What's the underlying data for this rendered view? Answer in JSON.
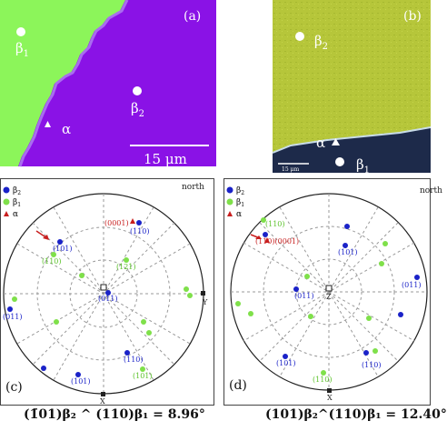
{
  "panel_a": {
    "label": "(a)",
    "phase_labels": {
      "beta1": "β",
      "beta1_sub": "1",
      "beta2": "β",
      "beta2_sub": "2",
      "alpha": "α"
    },
    "scale_bar": "15 μm",
    "colors": {
      "green": "#8cf55a",
      "purple": "#8a12e6"
    }
  },
  "panel_b": {
    "label": "(b)",
    "phase_labels": {
      "beta2": "β",
      "beta2_sub": "2",
      "alpha": "α",
      "beta1": "β",
      "beta1_sub": "1"
    },
    "scale_bar": "15 μm",
    "colors": {
      "yellow_green": "#b6c63a",
      "dark_blue": "#1d2a4a"
    }
  },
  "panel_c": {
    "label": "(c)",
    "north": "north",
    "legend": [
      {
        "symbol": "blue-dot",
        "text": "β",
        "sub": "2",
        "color": "#1a22c8"
      },
      {
        "symbol": "green-dot",
        "text": "β",
        "sub": "1",
        "color": "#7fe04a"
      },
      {
        "symbol": "red-triangle",
        "text": "α",
        "sub": "",
        "color": "#c81e1e"
      }
    ],
    "axes": {
      "x": "X",
      "y": "Y"
    },
    "labels": {
      "a0001": "(0001)",
      "b110": "(110)",
      "b101": "(101)",
      "g110": "(110)",
      "g121": "(121)",
      "center": "(011)",
      "left": "(011)",
      "g101": "(101)",
      "b110b": "(110)",
      "b101b": "(101)"
    }
  },
  "panel_d": {
    "label": "(d)",
    "north": "north",
    "legend": [
      {
        "symbol": "blue-dot",
        "text": "β",
        "sub": "2",
        "color": "#1a22c8"
      },
      {
        "symbol": "green-dot",
        "text": "β",
        "sub": "1",
        "color": "#7fe04a"
      },
      {
        "symbol": "red-triangle",
        "text": "α",
        "sub": "",
        "color": "#c81e1e"
      }
    ],
    "axes": {
      "x": "X",
      "z": "Z"
    },
    "labels": {
      "g110": "(110)",
      "a0001": "(110)(0001)",
      "b101": "(101)",
      "center": "(011)",
      "right": "(011)",
      "b110": "(110)",
      "b101b": "(101)",
      "g110b": "(110)"
    }
  },
  "captions": {
    "left": "(1̄01)β₂ ^ (110)β₁ = 8.96°",
    "right": "(101)β₂^(110)β₁ = 12.40°"
  }
}
